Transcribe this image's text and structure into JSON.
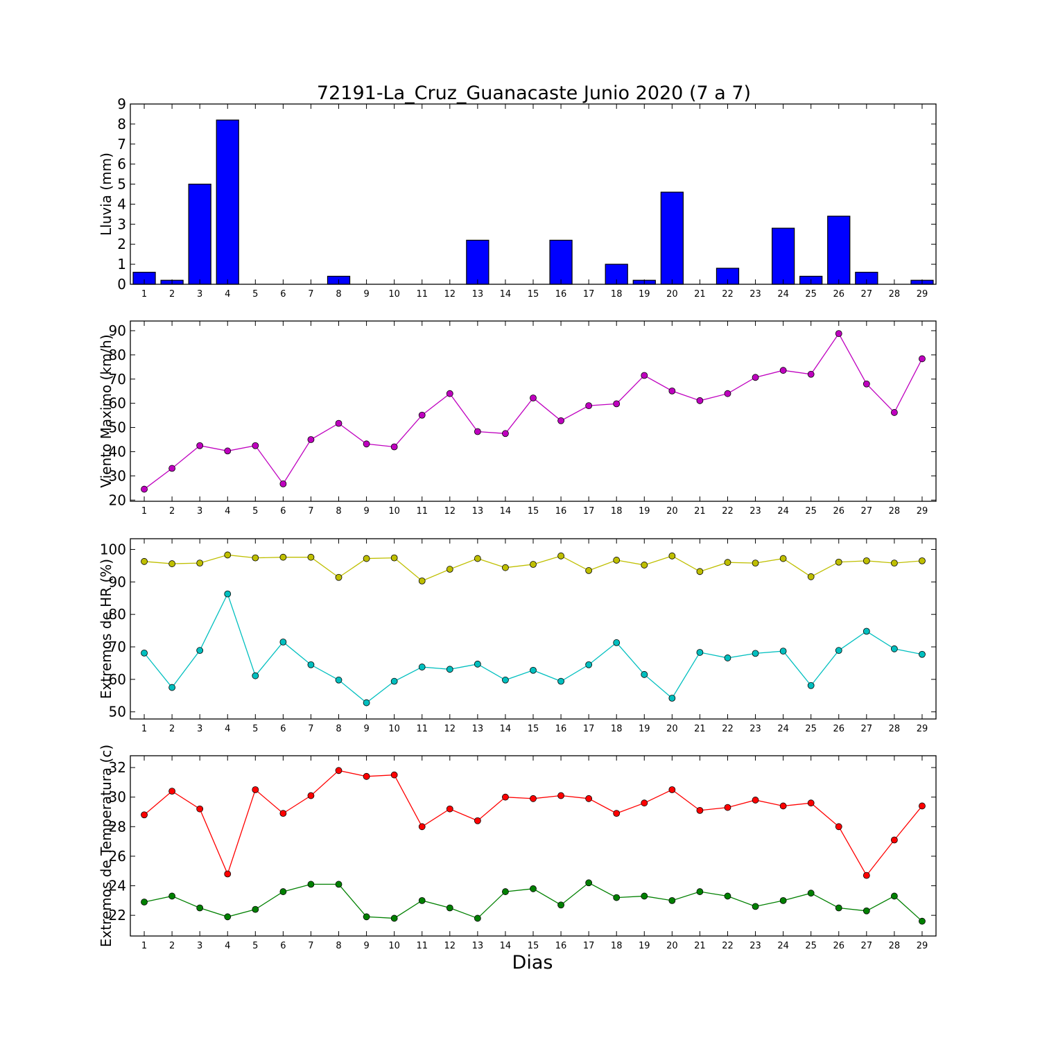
{
  "figure": {
    "title": "72191-La_Cruz_Guanacaste Junio 2020  (7 a 7)",
    "xlabel": "Dias"
  },
  "chart_data": [
    {
      "type": "bar",
      "ylabel": "Lluvia (mm)",
      "ylim": [
        0,
        9
      ],
      "yticks": [
        0,
        1,
        2,
        3,
        4,
        5,
        6,
        7,
        8,
        9
      ],
      "categories": [
        1,
        2,
        3,
        4,
        5,
        6,
        7,
        8,
        9,
        10,
        11,
        12,
        13,
        14,
        15,
        16,
        17,
        18,
        19,
        20,
        21,
        22,
        23,
        24,
        25,
        26,
        27,
        28,
        29
      ],
      "series": [
        {
          "color": "#0000ff",
          "values": [
            0.6,
            0.2,
            5.0,
            8.2,
            0,
            0,
            0,
            0.4,
            0,
            0,
            0,
            0,
            2.2,
            0,
            0,
            2.2,
            0,
            1.0,
            0.2,
            4.6,
            0,
            0.8,
            0,
            2.8,
            0.4,
            3.4,
            0.6,
            0,
            0.2
          ]
        }
      ],
      "grid": false
    },
    {
      "type": "line",
      "ylabel": "Viento Maximo (km/h)",
      "ylim": [
        19.5,
        94
      ],
      "yticks": [
        20,
        30,
        40,
        50,
        60,
        70,
        80,
        90
      ],
      "x": [
        1,
        2,
        3,
        4,
        5,
        6,
        7,
        8,
        9,
        10,
        11,
        12,
        13,
        14,
        15,
        16,
        17,
        18,
        19,
        20,
        21,
        22,
        23,
        24,
        25,
        26,
        27,
        28,
        29
      ],
      "series": [
        {
          "color": "#bf00bf",
          "values": [
            24.5,
            33.1,
            42.5,
            40.3,
            42.5,
            26.7,
            45.0,
            51.7,
            43.2,
            42.0,
            55.1,
            64.0,
            48.3,
            47.5,
            62.2,
            52.8,
            59.0,
            59.8,
            71.5,
            65.1,
            61.1,
            64.0,
            70.7,
            73.6,
            72.0,
            88.8,
            68.0,
            56.2,
            78.4
          ]
        }
      ],
      "grid": false
    },
    {
      "type": "line",
      "ylabel": "Extremos de HR (%)",
      "ylim": [
        47.8,
        103.3
      ],
      "yticks": [
        50,
        60,
        70,
        80,
        90,
        100
      ],
      "x": [
        1,
        2,
        3,
        4,
        5,
        6,
        7,
        8,
        9,
        10,
        11,
        12,
        13,
        14,
        15,
        16,
        17,
        18,
        19,
        20,
        21,
        22,
        23,
        24,
        25,
        26,
        27,
        28,
        29
      ],
      "series": [
        {
          "color": "#bfbf00",
          "values": [
            96.3,
            95.6,
            95.8,
            98.3,
            97.4,
            97.6,
            97.6,
            91.4,
            97.2,
            97.4,
            90.3,
            93.9,
            97.2,
            94.4,
            95.4,
            98.0,
            93.5,
            96.7,
            95.2,
            98.0,
            93.2,
            96.0,
            95.8,
            97.2,
            91.6,
            96.1,
            96.5,
            95.8,
            96.5
          ]
        },
        {
          "color": "#00bfbf",
          "values": [
            68.1,
            57.5,
            68.9,
            86.3,
            61.1,
            71.5,
            64.5,
            59.8,
            52.8,
            59.4,
            63.8,
            63.1,
            64.7,
            59.8,
            62.8,
            59.4,
            64.5,
            71.3,
            61.5,
            54.2,
            68.3,
            66.6,
            68.0,
            68.7,
            58.1,
            68.9,
            74.8,
            69.4,
            67.7
          ]
        }
      ],
      "grid": false
    },
    {
      "type": "line",
      "ylabel": "Extremos de Temperatura (c)",
      "ylim": [
        20.6,
        32.8
      ],
      "yticks": [
        22,
        24,
        26,
        28,
        30,
        32
      ],
      "x": [
        1,
        2,
        3,
        4,
        5,
        6,
        7,
        8,
        9,
        10,
        11,
        12,
        13,
        14,
        15,
        16,
        17,
        18,
        19,
        20,
        21,
        22,
        23,
        24,
        25,
        26,
        27,
        28,
        29
      ],
      "series": [
        {
          "color": "#ff0000",
          "values": [
            28.8,
            30.4,
            29.2,
            24.8,
            30.5,
            28.9,
            30.1,
            31.8,
            31.4,
            31.5,
            28.0,
            29.2,
            28.4,
            30.0,
            29.9,
            30.1,
            29.9,
            28.9,
            29.6,
            30.5,
            29.1,
            29.3,
            29.8,
            29.4,
            29.6,
            28.0,
            24.7,
            27.1,
            29.4
          ]
        },
        {
          "color": "#008000",
          "values": [
            22.9,
            23.3,
            22.5,
            21.9,
            22.4,
            23.6,
            24.1,
            24.1,
            21.9,
            21.8,
            23.0,
            22.5,
            21.8,
            23.6,
            23.8,
            22.7,
            24.2,
            23.2,
            23.3,
            23.0,
            23.6,
            23.3,
            22.6,
            23.0,
            23.5,
            22.5,
            22.3,
            23.3,
            21.6
          ]
        }
      ],
      "grid": false
    }
  ]
}
